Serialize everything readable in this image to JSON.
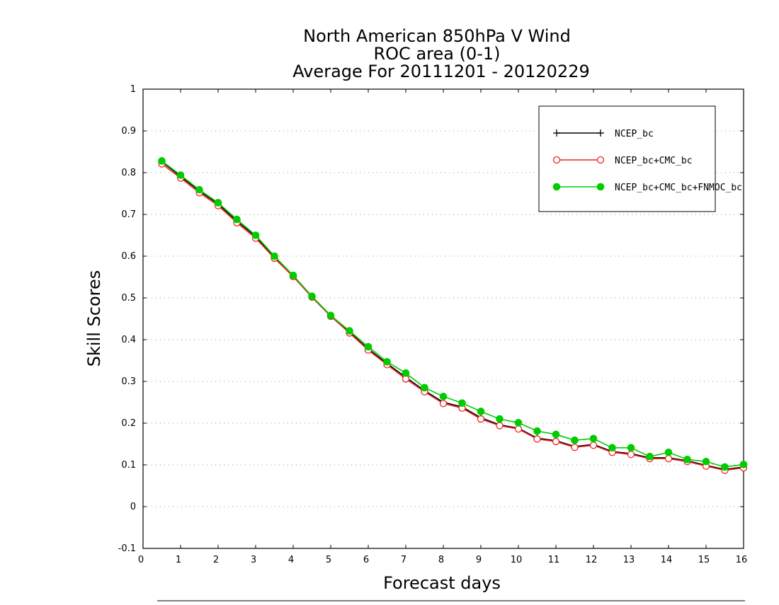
{
  "chart_data": {
    "type": "line",
    "title": [
      "North American 850hPa V Wind",
      "ROC area (0-1)",
      "Average For 20111201 - 20120229"
    ],
    "xlabel": "Forecast days",
    "ylabel": "Skill Scores",
    "xlim": [
      0,
      16
    ],
    "ylim": [
      -0.1,
      1
    ],
    "x_ticks": [
      0,
      1,
      2,
      3,
      4,
      5,
      6,
      7,
      8,
      9,
      10,
      11,
      12,
      13,
      14,
      15,
      16
    ],
    "y_ticks": [
      -0.1,
      0,
      0.1,
      0.2,
      0.3,
      0.4,
      0.5,
      0.6,
      0.7,
      0.8,
      0.9,
      1
    ],
    "y_tick_labels": [
      "-0.1",
      "0",
      "0.1",
      "0.2",
      "0.3",
      "0.4",
      "0.5",
      "0.6",
      "0.7",
      "0.8",
      "0.9",
      "1"
    ],
    "grid": "horizontal dotted",
    "legend_position": "top-right",
    "x": [
      0.5,
      1,
      1.5,
      2,
      2.5,
      3,
      3.5,
      4,
      4.5,
      5,
      5.5,
      6,
      6.5,
      7,
      7.5,
      8,
      8.5,
      9,
      9.5,
      10,
      10.5,
      11,
      11.5,
      12,
      12.5,
      13,
      13.5,
      14,
      14.5,
      15,
      15.5,
      16
    ],
    "series": [
      {
        "name": "NCEP_bc",
        "color": "#000000",
        "marker": "plus",
        "values": [
          0.826,
          0.791,
          0.756,
          0.725,
          0.684,
          0.647,
          0.597,
          0.552,
          0.502,
          0.456,
          0.418,
          0.378,
          0.343,
          0.31,
          0.278,
          0.25,
          0.239,
          0.213,
          0.196,
          0.188,
          0.164,
          0.158,
          0.144,
          0.149,
          0.132,
          0.127,
          0.117,
          0.117,
          0.11,
          0.099,
          0.089,
          0.095
        ]
      },
      {
        "name": "NCEP_bc+CMC_bc",
        "color": "#ee2222",
        "marker": "open-circle",
        "values": [
          0.821,
          0.787,
          0.752,
          0.721,
          0.68,
          0.643,
          0.595,
          0.551,
          0.502,
          0.456,
          0.416,
          0.375,
          0.34,
          0.306,
          0.275,
          0.247,
          0.236,
          0.21,
          0.194,
          0.186,
          0.162,
          0.156,
          0.142,
          0.147,
          0.13,
          0.125,
          0.115,
          0.115,
          0.108,
          0.097,
          0.087,
          0.093
        ]
      },
      {
        "name": "NCEP_bc+CMC_bc+FNMOC_bc",
        "color": "#00cc00",
        "marker": "filled-circle",
        "values": [
          0.828,
          0.794,
          0.759,
          0.728,
          0.688,
          0.65,
          0.6,
          0.554,
          0.504,
          0.458,
          0.421,
          0.383,
          0.347,
          0.32,
          0.285,
          0.264,
          0.248,
          0.228,
          0.21,
          0.201,
          0.181,
          0.173,
          0.159,
          0.163,
          0.141,
          0.141,
          0.12,
          0.13,
          0.113,
          0.108,
          0.095,
          0.101
        ]
      }
    ]
  }
}
